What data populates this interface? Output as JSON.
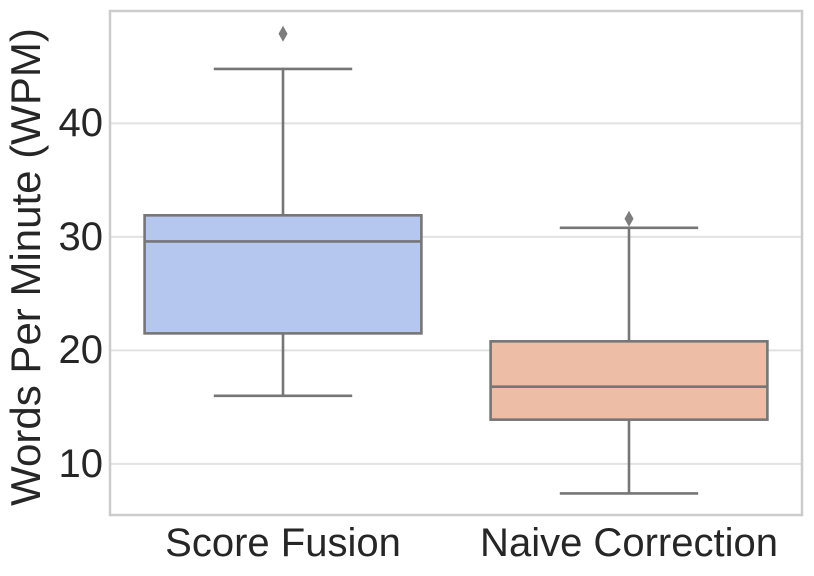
{
  "chart_data": {
    "type": "boxplot",
    "title": "",
    "xlabel": "",
    "ylabel": "Words Per Minute (WPM)",
    "categories": [
      "Score Fusion",
      "Naive Correction"
    ],
    "yticks": [
      10,
      20,
      30,
      40
    ],
    "ylim": [
      5.5,
      49.9
    ],
    "grid": "horizontal-gridlines",
    "legend": "none",
    "series": [
      {
        "name": "Score Fusion",
        "whisker_low": 16.0,
        "q1": 21.5,
        "median": 29.6,
        "q3": 31.9,
        "whisker_high": 44.8,
        "outliers": [
          47.9
        ],
        "fill": "#b5c7ee"
      },
      {
        "name": "Naive Correction",
        "whisker_low": 7.4,
        "q1": 13.9,
        "median": 16.8,
        "q3": 20.8,
        "whisker_high": 30.8,
        "outliers": [
          31.6
        ],
        "fill": "#eebda6"
      }
    ],
    "colors": {
      "box_edge": "#767676",
      "outlier": "#7d7d7d",
      "gridline": "#e2e2e2",
      "spine": "#cccccc",
      "text": "#262626",
      "background": "#ffffff"
    }
  }
}
